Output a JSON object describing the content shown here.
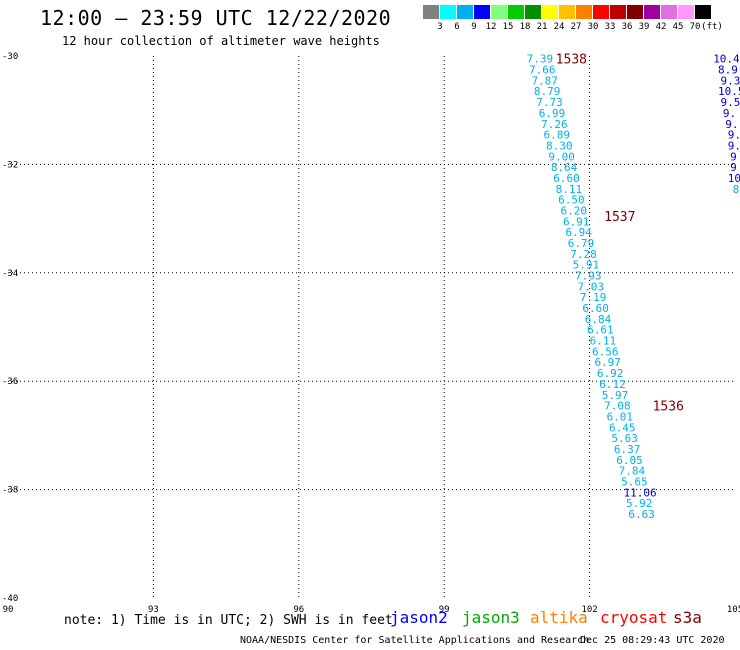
{
  "header": {
    "title": "12:00 – 23:59 UTC 12/22/2020",
    "subtitle": "12 hour collection of altimeter wave heights"
  },
  "color_scale": {
    "unit": "(ft)",
    "labels": [
      "3",
      "6",
      "9",
      "12",
      "15",
      "18",
      "21",
      "24",
      "27",
      "30",
      "33",
      "36",
      "39",
      "42",
      "45",
      "70"
    ],
    "colors": [
      "#808080",
      "#00ffff",
      "#00b0f0",
      "#0000ff",
      "#80ff80",
      "#00cc00",
      "#009000",
      "#ffff00",
      "#ffc000",
      "#ff8000",
      "#ff0000",
      "#c00000",
      "#800000",
      "#a000a0",
      "#e070e0",
      "#ff99ff",
      "#000000"
    ]
  },
  "map": {
    "lon_range": [
      90,
      105
    ],
    "lat_range": [
      -40,
      -30
    ],
    "lon_ticks": [
      "90",
      "93",
      "96",
      "99",
      "102",
      "105"
    ],
    "lat_ticks": [
      "-30",
      "-32",
      "-34",
      "-36",
      "-38",
      "-40"
    ],
    "track_labels": [
      {
        "text": "1538",
        "lon": 101.3,
        "lat": -30.05
      },
      {
        "text": "1537",
        "lon": 102.3,
        "lat": -32.95
      },
      {
        "text": "1536",
        "lon": 103.3,
        "lat": -36.45
      }
    ],
    "points": [
      {
        "v": "7.39",
        "lon": 100.7,
        "lat": -30.05,
        "c": "#00b0f0"
      },
      {
        "v": "7.66",
        "lon": 100.75,
        "lat": -30.25,
        "c": "#00b0f0"
      },
      {
        "v": "7.87",
        "lon": 100.8,
        "lat": -30.45,
        "c": "#00b0f0"
      },
      {
        "v": "8.79",
        "lon": 100.85,
        "lat": -30.65,
        "c": "#00b0f0"
      },
      {
        "v": "7.73",
        "lon": 100.9,
        "lat": -30.85,
        "c": "#00b0f0"
      },
      {
        "v": "6.99",
        "lon": 100.95,
        "lat": -31.05,
        "c": "#00b0f0"
      },
      {
        "v": "7.26",
        "lon": 101.0,
        "lat": -31.25,
        "c": "#00b0f0"
      },
      {
        "v": "6.89",
        "lon": 101.05,
        "lat": -31.45,
        "c": "#00b0f0"
      },
      {
        "v": "8.30",
        "lon": 101.1,
        "lat": -31.65,
        "c": "#00b0f0"
      },
      {
        "v": "9.00",
        "lon": 101.15,
        "lat": -31.85,
        "c": "#00b0f0"
      },
      {
        "v": "8.64",
        "lon": 101.2,
        "lat": -32.05,
        "c": "#00b0f0"
      },
      {
        "v": "6.60",
        "lon": 101.25,
        "lat": -32.25,
        "c": "#00b0f0"
      },
      {
        "v": "8.11",
        "lon": 101.3,
        "lat": -32.45,
        "c": "#00b0f0"
      },
      {
        "v": "6.50",
        "lon": 101.35,
        "lat": -32.65,
        "c": "#00b0f0"
      },
      {
        "v": "6.20",
        "lon": 101.4,
        "lat": -32.85,
        "c": "#00b0f0"
      },
      {
        "v": "6.91",
        "lon": 101.45,
        "lat": -33.05,
        "c": "#00b0f0"
      },
      {
        "v": "6.94",
        "lon": 101.5,
        "lat": -33.25,
        "c": "#00b0f0"
      },
      {
        "v": "6.79",
        "lon": 101.55,
        "lat": -33.45,
        "c": "#00b0f0"
      },
      {
        "v": "7.28",
        "lon": 101.6,
        "lat": -33.65,
        "c": "#00b0f0"
      },
      {
        "v": "5.91",
        "lon": 101.65,
        "lat": -33.85,
        "c": "#00b0f0"
      },
      {
        "v": "7.93",
        "lon": 101.7,
        "lat": -34.05,
        "c": "#00b0f0"
      },
      {
        "v": "7.03",
        "lon": 101.75,
        "lat": -34.25,
        "c": "#00b0f0"
      },
      {
        "v": "7.19",
        "lon": 101.8,
        "lat": -34.45,
        "c": "#00b0f0"
      },
      {
        "v": "6.60",
        "lon": 101.85,
        "lat": -34.65,
        "c": "#00b0f0"
      },
      {
        "v": "6.84",
        "lon": 101.9,
        "lat": -34.85,
        "c": "#00b0f0"
      },
      {
        "v": "6.61",
        "lon": 101.95,
        "lat": -35.05,
        "c": "#00b0f0"
      },
      {
        "v": "6.11",
        "lon": 102.0,
        "lat": -35.25,
        "c": "#00b0f0"
      },
      {
        "v": "6.56",
        "lon": 102.05,
        "lat": -35.45,
        "c": "#00b0f0"
      },
      {
        "v": "6.97",
        "lon": 102.1,
        "lat": -35.65,
        "c": "#00b0f0"
      },
      {
        "v": "6.92",
        "lon": 102.15,
        "lat": -35.85,
        "c": "#00b0f0"
      },
      {
        "v": "6.12",
        "lon": 102.2,
        "lat": -36.05,
        "c": "#00b0f0"
      },
      {
        "v": "5.97",
        "lon": 102.25,
        "lat": -36.25,
        "c": "#00b0f0"
      },
      {
        "v": "7.08",
        "lon": 102.3,
        "lat": -36.45,
        "c": "#00b0f0"
      },
      {
        "v": "6.01",
        "lon": 102.35,
        "lat": -36.65,
        "c": "#00b0f0"
      },
      {
        "v": "6.45",
        "lon": 102.4,
        "lat": -36.85,
        "c": "#00b0f0"
      },
      {
        "v": "5.63",
        "lon": 102.45,
        "lat": -37.05,
        "c": "#00b0f0"
      },
      {
        "v": "6.37",
        "lon": 102.5,
        "lat": -37.25,
        "c": "#00b0f0"
      },
      {
        "v": "6.05",
        "lon": 102.55,
        "lat": -37.45,
        "c": "#00b0f0"
      },
      {
        "v": "7.84",
        "lon": 102.6,
        "lat": -37.65,
        "c": "#00b0f0"
      },
      {
        "v": "5.65",
        "lon": 102.65,
        "lat": -37.85,
        "c": "#00b0f0"
      },
      {
        "v": "11.06",
        "lon": 102.7,
        "lat": -38.05,
        "c": "#0000c8"
      },
      {
        "v": "5.92",
        "lon": 102.75,
        "lat": -38.25,
        "c": "#00b0f0"
      },
      {
        "v": "6.63",
        "lon": 102.8,
        "lat": -38.45,
        "c": "#00b0f0"
      },
      {
        "v": "10.4",
        "lon": 104.55,
        "lat": -30.05,
        "c": "#0000c8"
      },
      {
        "v": "8.9",
        "lon": 104.65,
        "lat": -30.25,
        "c": "#0000c8"
      },
      {
        "v": "9.3",
        "lon": 104.7,
        "lat": -30.45,
        "c": "#0000c8"
      },
      {
        "v": "10.5",
        "lon": 104.65,
        "lat": -30.65,
        "c": "#0000c8"
      },
      {
        "v": "9.5",
        "lon": 104.7,
        "lat": -30.85,
        "c": "#0000c8"
      },
      {
        "v": "9.",
        "lon": 104.75,
        "lat": -31.05,
        "c": "#0000c8"
      },
      {
        "v": "9.",
        "lon": 104.8,
        "lat": -31.25,
        "c": "#0000c8"
      },
      {
        "v": "9.",
        "lon": 104.85,
        "lat": -31.45,
        "c": "#0000c8"
      },
      {
        "v": "9.",
        "lon": 104.85,
        "lat": -31.65,
        "c": "#0000c8"
      },
      {
        "v": "9",
        "lon": 104.9,
        "lat": -31.85,
        "c": "#0000c8"
      },
      {
        "v": "9",
        "lon": 104.9,
        "lat": -32.05,
        "c": "#0000c8"
      },
      {
        "v": "10",
        "lon": 104.85,
        "lat": -32.25,
        "c": "#0000c8"
      },
      {
        "v": "8",
        "lon": 104.95,
        "lat": -32.45,
        "c": "#00b0f0"
      }
    ]
  },
  "footer": {
    "note": "note: 1) Time is in UTC; 2) SWH is in feet",
    "satellites": [
      {
        "name": "jason2",
        "color": "#0000ff"
      },
      {
        "name": "jason3",
        "color": "#00aa00"
      },
      {
        "name": "altika",
        "color": "#ff8000"
      },
      {
        "name": "cryosat",
        "color": "#ff0000"
      },
      {
        "name": "s3a",
        "color": "#800000"
      }
    ],
    "credit": "NOAA/NESDIS Center for Satellite Applications and Research",
    "timestamp": "Dec 25 08:29:43 UTC 2020"
  }
}
